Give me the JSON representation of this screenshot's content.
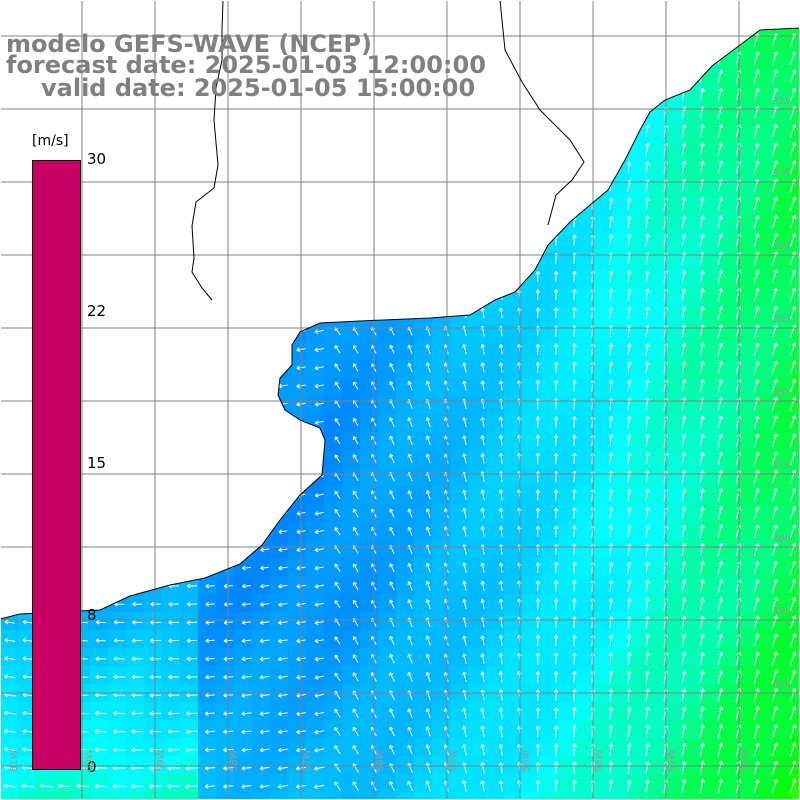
{
  "titles": {
    "model": "modelo GEFS-WAVE (NCEP)",
    "forecast": "forecast date: 2025-01-03 12:00:00",
    "valid": "valid date: 2025-01-05 15:00:00"
  },
  "colorbar": {
    "unit": "[m/s]",
    "ticks": [
      "30",
      "22",
      "15",
      "8",
      "0"
    ],
    "range": [
      0,
      30
    ],
    "colors": [
      "#0000ff",
      "#0096ff",
      "#00ffff",
      "#00ff00",
      "#ffff00",
      "#ff8000",
      "#ff0000",
      "#c80064"
    ]
  },
  "map": {
    "land_color": "#ffffff",
    "grid_color": "#808080",
    "coast_color": "#000000",
    "arrow_color": "#ffffff",
    "lat_labels": [
      "32S",
      "33S",
      "34S",
      "35S",
      "36S",
      "37S",
      "38S",
      "39S",
      "40S"
    ],
    "lon_labels": [
      "61W",
      "60W",
      "59W",
      "58W",
      "57W",
      "56W",
      "55W",
      "54W",
      "53W",
      "52W",
      "51W"
    ]
  }
}
